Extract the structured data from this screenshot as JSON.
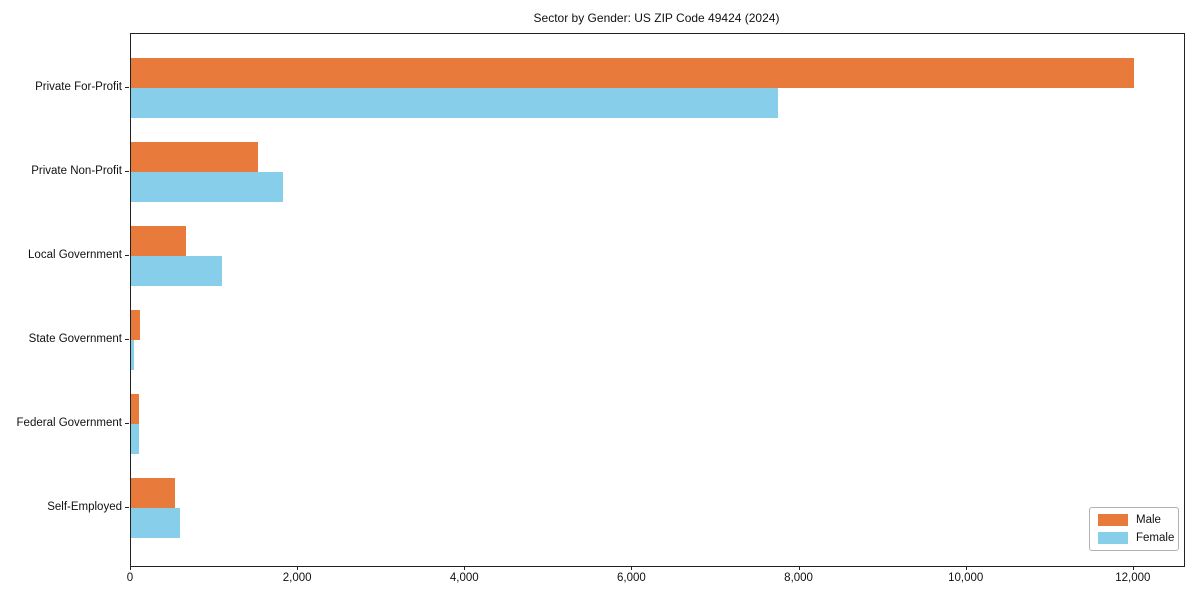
{
  "chart_data": {
    "type": "bar",
    "orientation": "horizontal",
    "title": "Sector by Gender: US ZIP Code 49424 (2024)",
    "categories": [
      "Private For-Profit",
      "Private Non-Profit",
      "Local Government",
      "State Government",
      "Federal Government",
      "Self-Employed"
    ],
    "series": [
      {
        "name": "Male",
        "color": "#e87a3c",
        "values": [
          12000,
          1520,
          660,
          110,
          95,
          525
        ]
      },
      {
        "name": "Female",
        "color": "#87ceeb",
        "values": [
          7740,
          1820,
          1090,
          40,
          90,
          585
        ]
      }
    ],
    "xlim": [
      0,
      12600
    ],
    "x_ticks": [
      0,
      2000,
      4000,
      6000,
      8000,
      10000,
      12000
    ],
    "x_tick_labels": [
      "0",
      "2,000",
      "4,000",
      "6,000",
      "8,000",
      "10,000",
      "12,000"
    ],
    "grid": false,
    "legend": {
      "position": "lower-right",
      "entries": [
        "Male",
        "Female"
      ]
    }
  }
}
